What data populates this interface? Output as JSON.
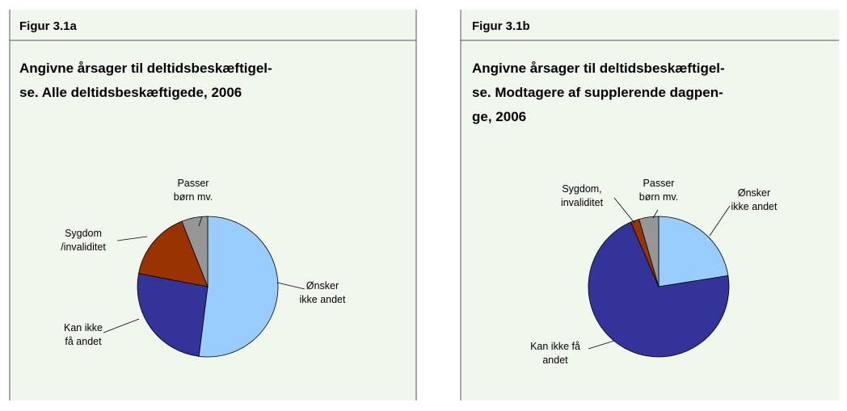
{
  "chart_data": [
    {
      "type": "pie",
      "header": "Figur 3.1a",
      "title": "Angivne årsager til deltidsbeskæftigel-\nse. Alle deltidsbeskæftigede, 2006",
      "categories": [
        "Ønsker\nikke andet",
        "Kan ikke\nfå andet",
        "Sygdom\n/invaliditet",
        "Passer\nbørn mv."
      ],
      "values": [
        52,
        26,
        16,
        6
      ],
      "colors": [
        "#99ccff",
        "#333399",
        "#993300",
        "#969696"
      ]
    },
    {
      "type": "pie",
      "header": "Figur 3.1b",
      "title": "Angivne årsager til deltidsbeskæftigel-\nse. Modtagere af supplerende dagpen-\nge, 2006",
      "categories": [
        "Ønsker\nikke andet",
        "Kan ikke få\nandet",
        "Sygdom,\ninvaliditet",
        "Passer\nbørn mv."
      ],
      "values": [
        22.5,
        71,
        2,
        4.5
      ],
      "colors": [
        "#99ccff",
        "#333399",
        "#993300",
        "#969696"
      ]
    }
  ]
}
